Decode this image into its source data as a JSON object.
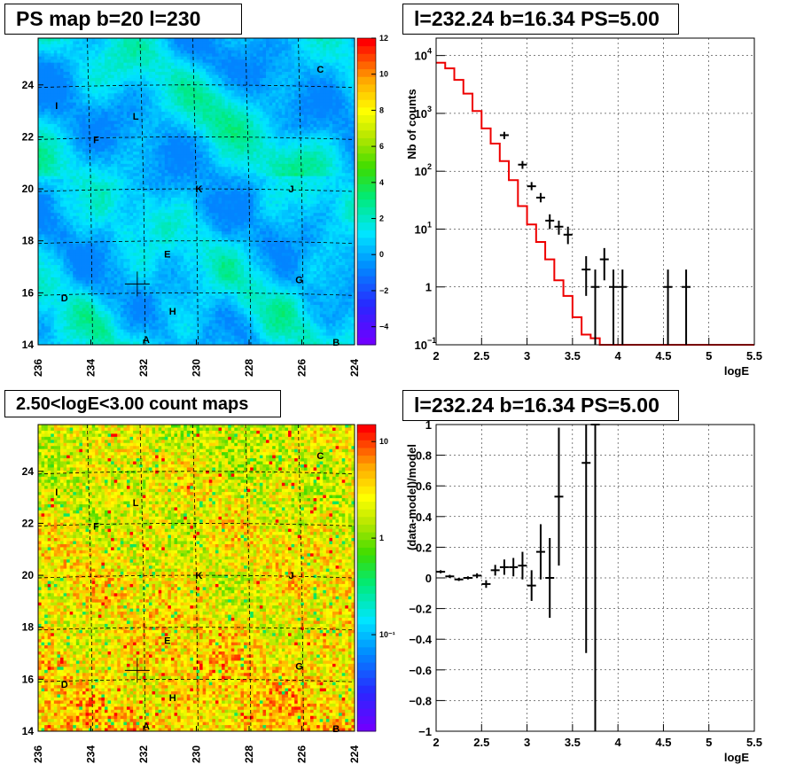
{
  "panels": {
    "ps_map": {
      "title": "PS map b=20 l=230",
      "x_ticks": [
        "236",
        "234",
        "232",
        "230",
        "228",
        "226",
        "224"
      ],
      "y_ticks": [
        "14",
        "16",
        "18",
        "20",
        "22",
        "24"
      ],
      "colorbar_ticks": [
        "12",
        "10",
        "8",
        "6",
        "4",
        "2",
        "0",
        "−2",
        "−4"
      ],
      "labels": [
        "A",
        "B",
        "C",
        "D",
        "E",
        "F",
        "G",
        "H",
        "I",
        "J",
        "K",
        "L"
      ]
    },
    "spectrum": {
      "title": "l=232.24 b=16.34 PS=5.00",
      "xlabel": "logE",
      "ylabel": "Nb of counts",
      "x_ticks": [
        "2",
        "2.5",
        "3",
        "3.5",
        "4",
        "4.5",
        "5",
        "5.5"
      ],
      "y_tick_base": "10",
      "y_tick_exps": [
        "4",
        "3",
        "2",
        "1",
        "",
        "−1"
      ],
      "y_tick_one": "1"
    },
    "count_map": {
      "title": "2.50<logE<3.00 count maps",
      "x_ticks": [
        "236",
        "234",
        "232",
        "230",
        "228",
        "226",
        "224"
      ],
      "y_ticks": [
        "14",
        "16",
        "18",
        "20",
        "22",
        "24"
      ],
      "colorbar_ticks": [
        "10",
        "1",
        "10⁻¹"
      ],
      "labels": [
        "A",
        "B",
        "C",
        "D",
        "E",
        "F",
        "G",
        "H",
        "I",
        "J",
        "K",
        "L"
      ]
    },
    "residual": {
      "title": "l=232.24 b=16.34 PS=5.00",
      "xlabel": "logE",
      "ylabel": "(data-model)/model",
      "x_ticks": [
        "2",
        "2.5",
        "3",
        "3.5",
        "4",
        "4.5",
        "5",
        "5.5"
      ],
      "y_ticks": [
        "1",
        "0.8",
        "0.6",
        "0.4",
        "0.2",
        "0",
        "−0.2",
        "−0.4",
        "−0.6",
        "−0.8",
        "−1"
      ]
    }
  },
  "colors": {
    "model_line": "#ee0000",
    "data_points": "#000000",
    "frame": "#000000"
  },
  "chart_data": [
    {
      "type": "heatmap",
      "title": "PS map b=20 l=230",
      "xlim": [
        236,
        224
      ],
      "ylim": [
        14,
        25.8
      ],
      "zlim": [
        -5,
        12
      ],
      "marked_sources": [
        {
          "name": "A",
          "l": 231.9,
          "b": 14.2
        },
        {
          "name": "B",
          "l": 224.7,
          "b": 14.1
        },
        {
          "name": "C",
          "l": 225.3,
          "b": 24.6
        },
        {
          "name": "D",
          "l": 235.0,
          "b": 15.8
        },
        {
          "name": "E",
          "l": 231.1,
          "b": 17.5
        },
        {
          "name": "F",
          "l": 233.8,
          "b": 21.9
        },
        {
          "name": "G",
          "l": 226.1,
          "b": 16.5
        },
        {
          "name": "H",
          "l": 230.9,
          "b": 15.3
        },
        {
          "name": "I",
          "l": 235.3,
          "b": 23.2
        },
        {
          "name": "J",
          "l": 226.4,
          "b": 20.0
        },
        {
          "name": "K",
          "l": 229.9,
          "b": 20.0
        },
        {
          "name": "L",
          "l": 232.3,
          "b": 22.8
        }
      ],
      "cross": {
        "l": 232.24,
        "b": 16.34
      }
    },
    {
      "type": "line",
      "title": "l=232.24 b=16.34 PS=5.00",
      "xlabel": "logE",
      "ylabel": "Nb of counts",
      "xlim": [
        2,
        5.5
      ],
      "ylim": [
        0.1,
        20000
      ],
      "log_y": true,
      "model_x": [
        2.0,
        2.1,
        2.2,
        2.3,
        2.4,
        2.5,
        2.6,
        2.7,
        2.8,
        2.9,
        3.0,
        3.1,
        3.2,
        3.3,
        3.4,
        3.5,
        3.6,
        3.7,
        3.8,
        3.9,
        4.0,
        5.5
      ],
      "model_y": [
        7500,
        6000,
        3800,
        2200,
        1100,
        550,
        300,
        150,
        70,
        25,
        12,
        6,
        3,
        1.3,
        0.7,
        0.3,
        0.15,
        0.13,
        0.1,
        0.1,
        0.1,
        0.1
      ],
      "data_points": [
        {
          "x": 2.75,
          "y": 420,
          "lo": 360,
          "hi": 480
        },
        {
          "x": 2.95,
          "y": 130,
          "lo": 110,
          "hi": 150
        },
        {
          "x": 3.05,
          "y": 55,
          "lo": 47,
          "hi": 65
        },
        {
          "x": 3.15,
          "y": 35,
          "lo": 29,
          "hi": 42
        },
        {
          "x": 3.25,
          "y": 14,
          "lo": 10,
          "hi": 18
        },
        {
          "x": 3.35,
          "y": 11,
          "lo": 8,
          "hi": 14
        },
        {
          "x": 3.45,
          "y": 8,
          "lo": 5.5,
          "hi": 11
        },
        {
          "x": 3.65,
          "y": 2,
          "lo": 0.7,
          "hi": 3.4
        },
        {
          "x": 3.75,
          "y": 1,
          "lo": 0.1,
          "hi": 2
        },
        {
          "x": 3.85,
          "y": 3,
          "lo": 1.3,
          "hi": 4.7
        },
        {
          "x": 3.95,
          "y": 1,
          "lo": 0.1,
          "hi": 2
        },
        {
          "x": 4.05,
          "y": 1,
          "lo": 0.1,
          "hi": 2
        },
        {
          "x": 4.55,
          "y": 1,
          "lo": 0.1,
          "hi": 2
        },
        {
          "x": 4.75,
          "y": 1,
          "lo": 0.1,
          "hi": 2
        }
      ]
    },
    {
      "type": "heatmap",
      "title": "2.50<logE<3.00 count maps",
      "xlim": [
        236,
        224
      ],
      "ylim": [
        14,
        25.8
      ],
      "zlim": [
        0.01,
        15
      ],
      "log_z": true
    },
    {
      "type": "scatter",
      "title": "l=232.24 b=16.34 PS=5.00",
      "xlabel": "logE",
      "ylabel": "(data-model)/model",
      "xlim": [
        2,
        5.5
      ],
      "ylim": [
        -1,
        1
      ],
      "points": [
        {
          "x": 2.05,
          "y": 0.04,
          "e": 0.01
        },
        {
          "x": 2.15,
          "y": 0.01,
          "e": 0.01
        },
        {
          "x": 2.25,
          "y": -0.01,
          "e": 0.01
        },
        {
          "x": 2.35,
          "y": 0.0,
          "e": 0.01
        },
        {
          "x": 2.45,
          "y": 0.015,
          "e": 0.015
        },
        {
          "x": 2.55,
          "y": -0.04,
          "e": 0.025
        },
        {
          "x": 2.65,
          "y": 0.05,
          "e": 0.035
        },
        {
          "x": 2.75,
          "y": 0.07,
          "e": 0.05
        },
        {
          "x": 2.85,
          "y": 0.07,
          "e": 0.06
        },
        {
          "x": 2.95,
          "y": 0.08,
          "e": 0.09
        },
        {
          "x": 3.05,
          "y": -0.05,
          "e": 0.1
        },
        {
          "x": 3.15,
          "y": 0.17,
          "e": 0.18
        },
        {
          "x": 3.25,
          "y": 0.0,
          "e": 0.26
        },
        {
          "x": 3.35,
          "y": 0.53,
          "e": 0.45
        },
        {
          "x": 3.65,
          "y": 0.75,
          "e": 1.24
        },
        {
          "x": 3.75,
          "y": 1.0,
          "e": 2.0
        }
      ]
    }
  ]
}
